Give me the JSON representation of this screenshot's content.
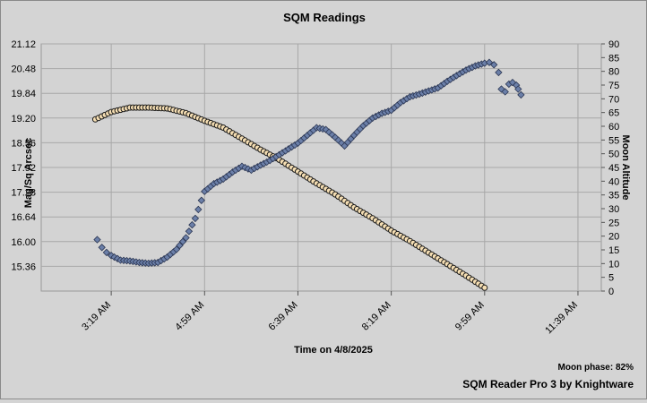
{
  "chart_data": {
    "type": "scatter",
    "title": "SQM Readings",
    "xlabel": "Time on 4/8/2025",
    "ylabel": "Mag/Sq Arcsec",
    "y2label": "Moon Altitude",
    "x_ticks": [
      "3:19 AM",
      "4:59 AM",
      "6:39 AM",
      "8:19 AM",
      "9:59 AM",
      "11:39 AM"
    ],
    "y_ticks": [
      "15.36",
      "16.00",
      "16.64",
      "17.28",
      "17.92",
      "18.56",
      "19.20",
      "19.84",
      "20.48",
      "21.12"
    ],
    "y_range": [
      14.72,
      21.12
    ],
    "y2_ticks": [
      "0",
      "5",
      "10",
      "15",
      "20",
      "25",
      "30",
      "35",
      "40",
      "45",
      "50",
      "55",
      "60",
      "65",
      "70",
      "75",
      "80",
      "85",
      "90"
    ],
    "y2_range": [
      0,
      90
    ],
    "x_range_minutes_from_3_19am": [
      -75,
      525
    ],
    "series": [
      {
        "color": "#6b7fa8",
        "marker": "diamond",
        "points": [
          [
            -15,
            16.05
          ],
          [
            -10,
            15.85
          ],
          [
            -5,
            15.72
          ],
          [
            0,
            15.64
          ],
          [
            10,
            15.52
          ],
          [
            20,
            15.5
          ],
          [
            30,
            15.46
          ],
          [
            40,
            15.44
          ],
          [
            50,
            15.46
          ],
          [
            60,
            15.6
          ],
          [
            70,
            15.8
          ],
          [
            80,
            16.1
          ],
          [
            90,
            16.6
          ],
          [
            100,
            17.3
          ],
          [
            110,
            17.5
          ],
          [
            120,
            17.62
          ],
          [
            130,
            17.8
          ],
          [
            140,
            17.95
          ],
          [
            150,
            17.85
          ],
          [
            160,
            17.98
          ],
          [
            170,
            18.1
          ],
          [
            180,
            18.25
          ],
          [
            190,
            18.4
          ],
          [
            200,
            18.55
          ],
          [
            210,
            18.75
          ],
          [
            220,
            18.95
          ],
          [
            230,
            18.9
          ],
          [
            240,
            18.7
          ],
          [
            250,
            18.48
          ],
          [
            260,
            18.75
          ],
          [
            270,
            19.0
          ],
          [
            280,
            19.2
          ],
          [
            290,
            19.32
          ],
          [
            300,
            19.4
          ],
          [
            310,
            19.6
          ],
          [
            320,
            19.75
          ],
          [
            330,
            19.82
          ],
          [
            340,
            19.9
          ],
          [
            350,
            19.98
          ],
          [
            360,
            20.15
          ],
          [
            370,
            20.3
          ],
          [
            380,
            20.44
          ],
          [
            390,
            20.55
          ],
          [
            400,
            20.62
          ],
          [
            405,
            20.64
          ],
          [
            410,
            20.58
          ],
          [
            415,
            20.38
          ],
          [
            418,
            19.95
          ],
          [
            422,
            19.88
          ],
          [
            426,
            20.08
          ],
          [
            430,
            20.12
          ],
          [
            434,
            20.05
          ],
          [
            436,
            19.95
          ],
          [
            439,
            19.8
          ]
        ]
      },
      {
        "name": "Moon Altitude",
        "color": "#f5deb3",
        "marker": "circle",
        "points": [
          [
            -17,
            62.5
          ],
          [
            0,
            65.2
          ],
          [
            20,
            66.8
          ],
          [
            40,
            66.8
          ],
          [
            60,
            66.5
          ],
          [
            80,
            64.8
          ],
          [
            100,
            62.0
          ],
          [
            120,
            59.5
          ],
          [
            140,
            55.5
          ],
          [
            160,
            51.5
          ],
          [
            180,
            47.8
          ],
          [
            200,
            43.5
          ],
          [
            220,
            39.2
          ],
          [
            240,
            35.2
          ],
          [
            260,
            30.5
          ],
          [
            280,
            26.5
          ],
          [
            300,
            22.0
          ],
          [
            320,
            18.2
          ],
          [
            340,
            14.0
          ],
          [
            360,
            9.8
          ],
          [
            380,
            5.6
          ],
          [
            400,
            1.2
          ]
        ]
      }
    ],
    "footer": {
      "moon_phase": "Moon phase: 82%",
      "software": "SQM Reader Pro 3 by Knightware"
    }
  }
}
